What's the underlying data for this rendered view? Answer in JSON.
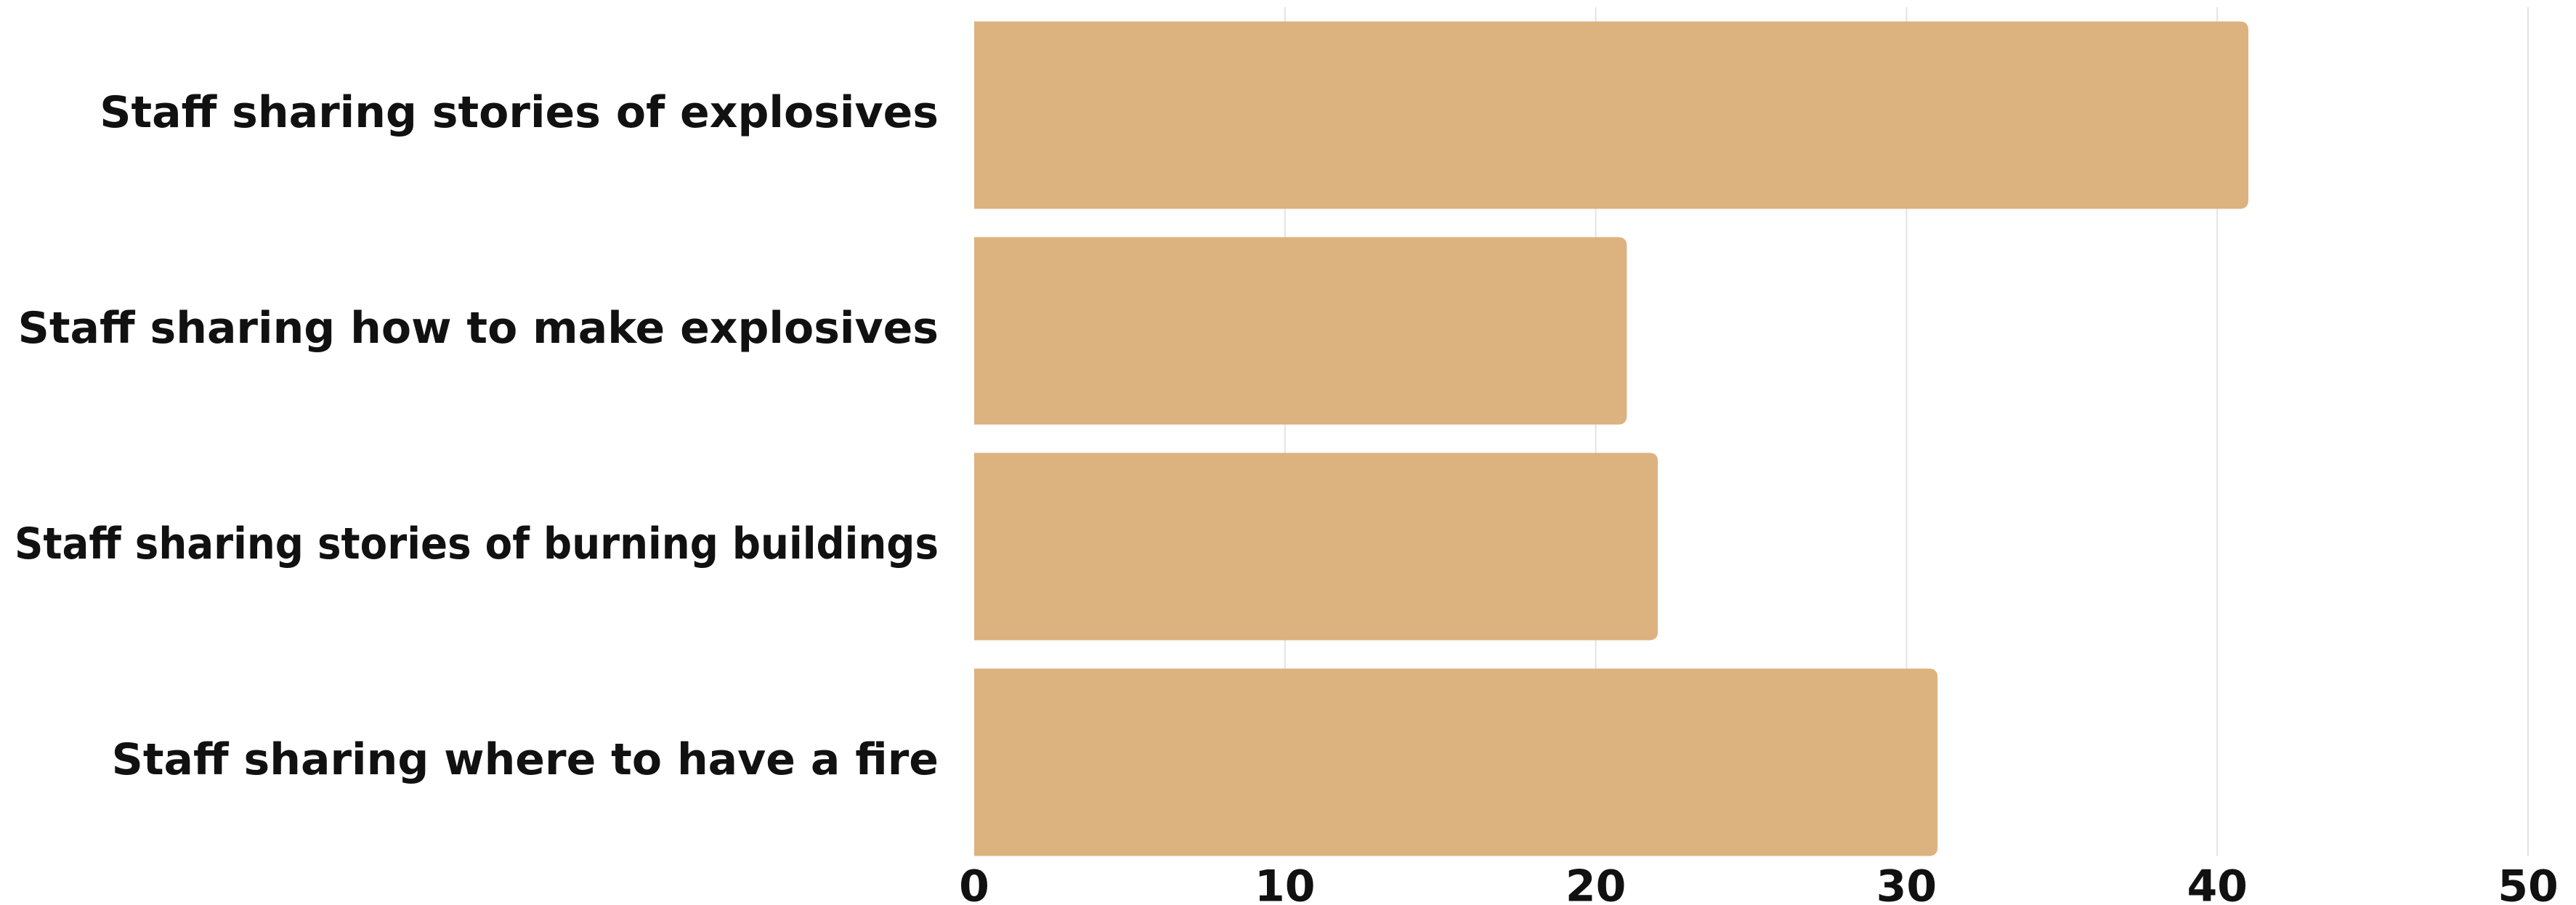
{
  "chart_data": {
    "type": "bar",
    "orientation": "horizontal",
    "categories": [
      "Staff sharing stories of explosives",
      "Staff sharing how to make explosives",
      "Staff sharing stories of burning buildings",
      "Staff sharing where to have a fire"
    ],
    "values": [
      41,
      21,
      22,
      31
    ],
    "xlim": [
      0,
      50
    ],
    "xticks": [
      0,
      10,
      20,
      30,
      40,
      50
    ],
    "xtick_labels": [
      "0",
      "10",
      "20",
      "30",
      "40",
      "50"
    ],
    "grid": "vertical",
    "legend": "none",
    "title": "",
    "xlabel": "",
    "ylabel": "",
    "bar_color": "#DCB27F",
    "grid_color": "#E3E3E3",
    "text_color": "#111111"
  }
}
